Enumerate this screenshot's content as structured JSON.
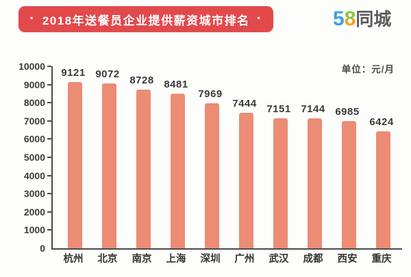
{
  "header": {
    "title_badge": {
      "left_dot": "·",
      "text": "2018年送餐员企业提供薪资城市排名",
      "right_dot": "·",
      "bg_color": "#e2494b",
      "text_color": "#ffffff"
    },
    "logo": {
      "five": "5",
      "eight": "8",
      "name": "同城",
      "five_color": "#3aa0e0",
      "eight_top_color": "#8dc63f",
      "eight_bottom_color": "#f5a31c",
      "name_color": "#5b5b5b"
    }
  },
  "chart_data": {
    "type": "bar",
    "title": "2018年送餐员企业提供薪资城市排名",
    "unit_label": "单位：元/月",
    "categories": [
      "杭州",
      "北京",
      "南京",
      "上海",
      "深圳",
      "广州",
      "武汉",
      "成都",
      "西安",
      "重庆"
    ],
    "values": [
      9121,
      9072,
      8728,
      8481,
      7969,
      7444,
      7151,
      7144,
      6985,
      6424
    ],
    "ylim": [
      0,
      10000
    ],
    "ytick_step": 1000,
    "yticks": [
      0,
      1000,
      2000,
      3000,
      4000,
      5000,
      6000,
      7000,
      8000,
      9000,
      10000
    ],
    "bar_color": "#ec8c74",
    "axis_color": "#4a4a4a",
    "label_color": "#3a3a3a",
    "grid": false,
    "legend": "none"
  }
}
